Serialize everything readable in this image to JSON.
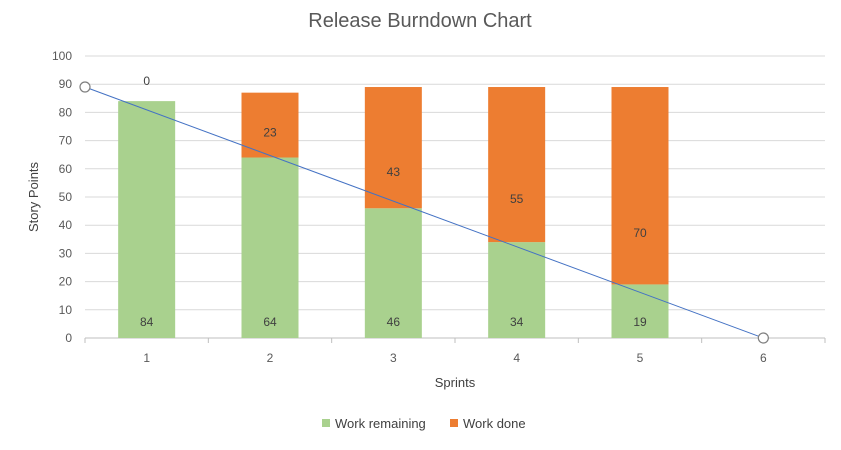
{
  "chart_data": {
    "type": "bar",
    "stacked": true,
    "title": "Release Burndown Chart",
    "xlabel": "Sprints",
    "ylabel": "Story Points",
    "categories": [
      "1",
      "2",
      "3",
      "4",
      "5",
      "6"
    ],
    "ylim": [
      0,
      100
    ],
    "yticks": [
      0,
      10,
      20,
      30,
      40,
      50,
      60,
      70,
      80,
      90,
      100
    ],
    "grid": true,
    "legend_position": "bottom",
    "series": [
      {
        "name": "Work remaining",
        "color": "#A9D18E",
        "values": [
          84,
          64,
          46,
          34,
          19,
          null
        ]
      },
      {
        "name": "Work done",
        "color": "#ED7D31",
        "values": [
          0,
          23,
          43,
          55,
          70,
          null
        ]
      }
    ],
    "trend_line": {
      "type": "line",
      "color": "#4472C4",
      "points": [
        {
          "x": 0.5,
          "y": 89
        },
        {
          "x": 6,
          "y": 0
        }
      ]
    }
  }
}
